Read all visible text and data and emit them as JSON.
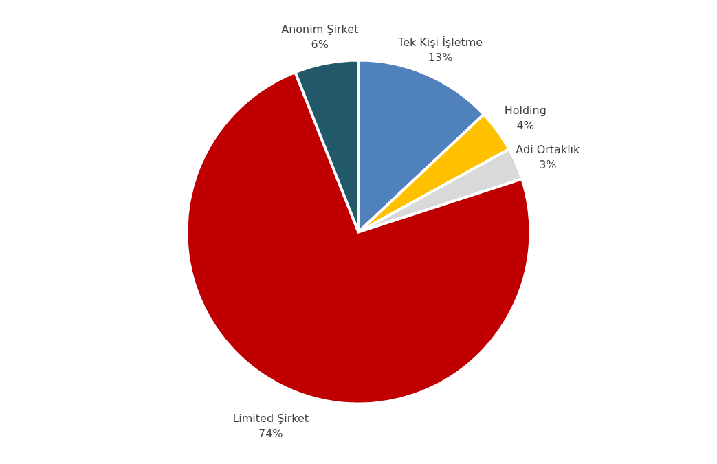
{
  "chart_data": {
    "type": "pie",
    "categories": [
      "Tek Kişi İşletme",
      "Holding",
      "Adi Ortaklık",
      "Limited Şirket",
      "Anonim Şirket"
    ],
    "values": [
      13,
      4,
      3,
      74,
      6
    ],
    "value_labels": [
      "13%",
      "4%",
      "3%",
      "74%",
      "6%"
    ],
    "colors": [
      "#4f81bd",
      "#ffc000",
      "#d9d9d9",
      "#c00000",
      "#215968"
    ],
    "legend": false
  }
}
